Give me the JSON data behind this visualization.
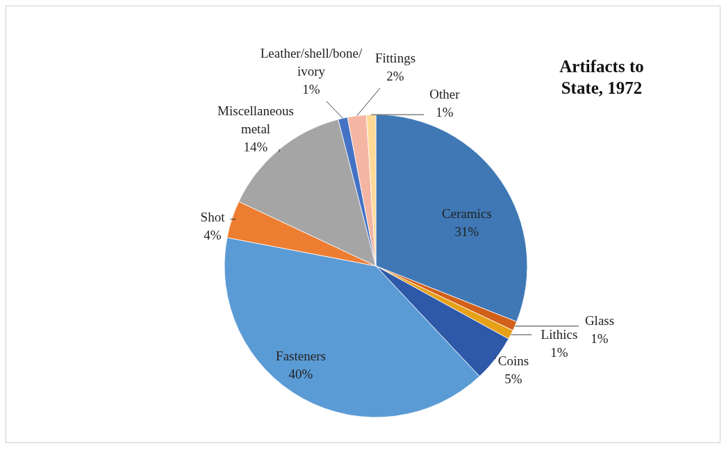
{
  "chart_data": {
    "type": "pie",
    "title": "Artifacts to State, 1972",
    "categories": [
      "Ceramics",
      "Glass",
      "Lithics",
      "Coins",
      "Fasteners",
      "Shot",
      "Miscellaneous metal",
      "Leather/shell/bone/ivory",
      "Fittings",
      "Other"
    ],
    "values": [
      31,
      1,
      1,
      5,
      40,
      4,
      14,
      1,
      2,
      1
    ],
    "value_labels": [
      "31%",
      "1%",
      "1%",
      "5%",
      "40%",
      "4%",
      "14%",
      "1%",
      "2%",
      "1%"
    ],
    "colors": [
      "#3f78b5",
      "#d2601a",
      "#e6a117",
      "#2e58a8",
      "#5b9bd5",
      "#ed7d31",
      "#a5a5a5",
      "#4472c4",
      "#f4b6a3",
      "#ffd996"
    ]
  }
}
